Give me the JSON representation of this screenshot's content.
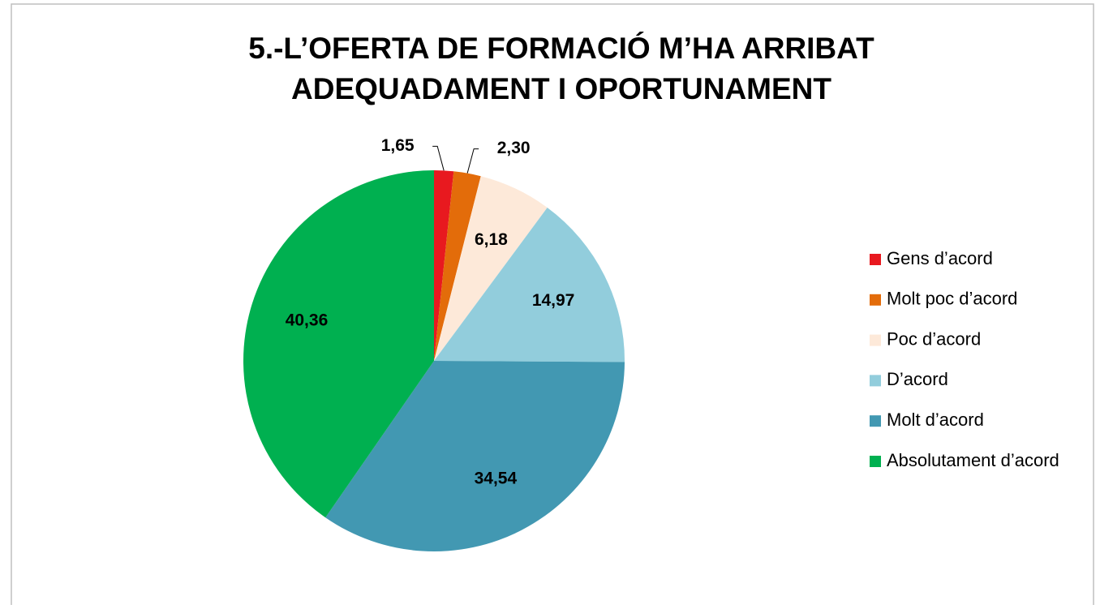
{
  "chart_data": {
    "type": "pie",
    "title": [
      "5.-L’OFERTA DE FORMACIÓ M’HA ARRIBAT",
      "ADEQUADAMENT I OPORTUNAMENT"
    ],
    "categories": [
      "Gens d’acord",
      "Molt poc d’acord",
      "Poc d’acord",
      "D’acord",
      "Molt d’acord",
      "Absolutament d’acord"
    ],
    "values": [
      1.65,
      2.3,
      6.18,
      14.97,
      34.54,
      40.36
    ],
    "value_labels": [
      "1,65",
      "2,30",
      "6,18",
      "14,97",
      "34,54",
      "40,36"
    ],
    "colors": [
      "#e8191f",
      "#e36c0a",
      "#fde9d9",
      "#92cddc",
      "#4298b2",
      "#00b050"
    ],
    "legend": "right"
  }
}
